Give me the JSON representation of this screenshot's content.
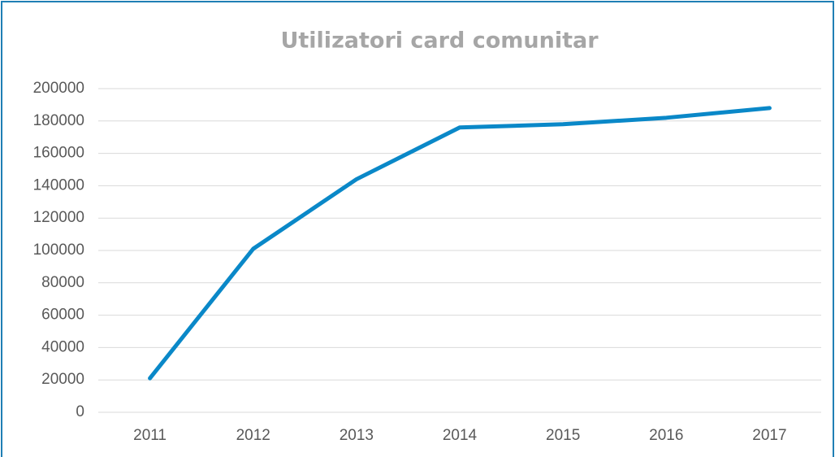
{
  "chart_data": {
    "type": "line",
    "title": "Utilizatori card comunitar",
    "categories": [
      "2011",
      "2012",
      "2013",
      "2014",
      "2015",
      "2016",
      "2017"
    ],
    "series": [
      {
        "name": "Utilizatori card comunitar",
        "color": "#0a88c8",
        "values": [
          21000,
          101000,
          144000,
          176000,
          178000,
          182000,
          188000
        ]
      }
    ],
    "ylim": [
      0,
      200000
    ],
    "yticks": [
      0,
      20000,
      40000,
      60000,
      80000,
      100000,
      120000,
      140000,
      160000,
      180000,
      200000
    ],
    "grid": true
  }
}
